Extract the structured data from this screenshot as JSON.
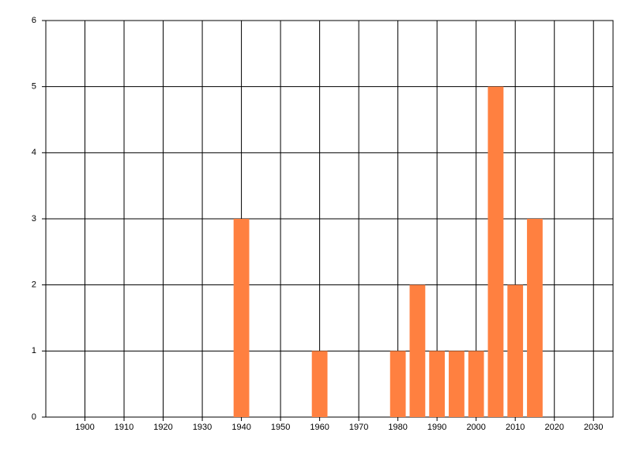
{
  "chart_data": {
    "type": "bar",
    "x": [
      1940,
      1960,
      1980,
      1985,
      1990,
      1995,
      2000,
      2005,
      2010,
      2015
    ],
    "values": [
      3,
      1,
      1,
      2,
      1,
      1,
      1,
      5,
      2,
      3
    ],
    "color": "#ff8040",
    "xlim": [
      1890,
      2035
    ],
    "xticks": [
      1900,
      1910,
      1920,
      1930,
      1940,
      1950,
      1960,
      1970,
      1980,
      1990,
      2000,
      2010,
      2020,
      2030
    ],
    "ylim": [
      0,
      6
    ],
    "yticks": [
      0,
      1,
      2,
      3,
      4,
      5,
      6
    ],
    "grid": true
  }
}
